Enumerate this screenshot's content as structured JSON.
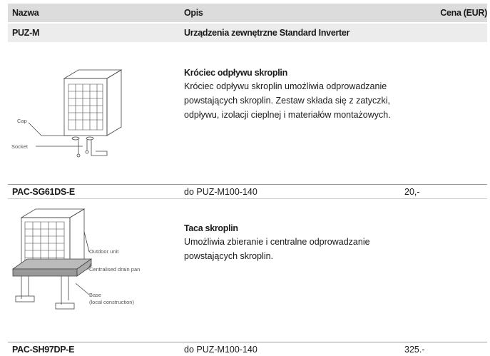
{
  "header": {
    "col_name": "Nazwa",
    "col_desc": "Opis",
    "col_price": "Cena (EUR)"
  },
  "group": {
    "name": "PUZ-M",
    "desc": "Urządzenia zewnętrzne Standard Inverter"
  },
  "products": [
    {
      "diagram_labels": [
        "Cap",
        "Socket"
      ],
      "title": "Króciec odpływu skroplin",
      "description": [
        "Króciec odpływu skroplin umożliwia odprowadzanie",
        "powstających skroplin. Zestaw składa się z zatyczki,",
        "odpływu, izolacji cieplnej i materiałów montażowych."
      ],
      "code": "PAC-SG61DS-E",
      "applies_to": "do PUZ-M100-140",
      "price": "20,-"
    },
    {
      "diagram_labels": [
        "Outdoor unit",
        "Centralised drain pan",
        "Base",
        "(local construction)"
      ],
      "title": "Taca skroplin",
      "description": [
        "Umożliwia zbieranie i centralne odprowadzanie",
        "powstających skroplin."
      ],
      "code": "PAC-SH97DP-E",
      "applies_to": "do PUZ-M100-140",
      "price": "325.-"
    }
  ]
}
